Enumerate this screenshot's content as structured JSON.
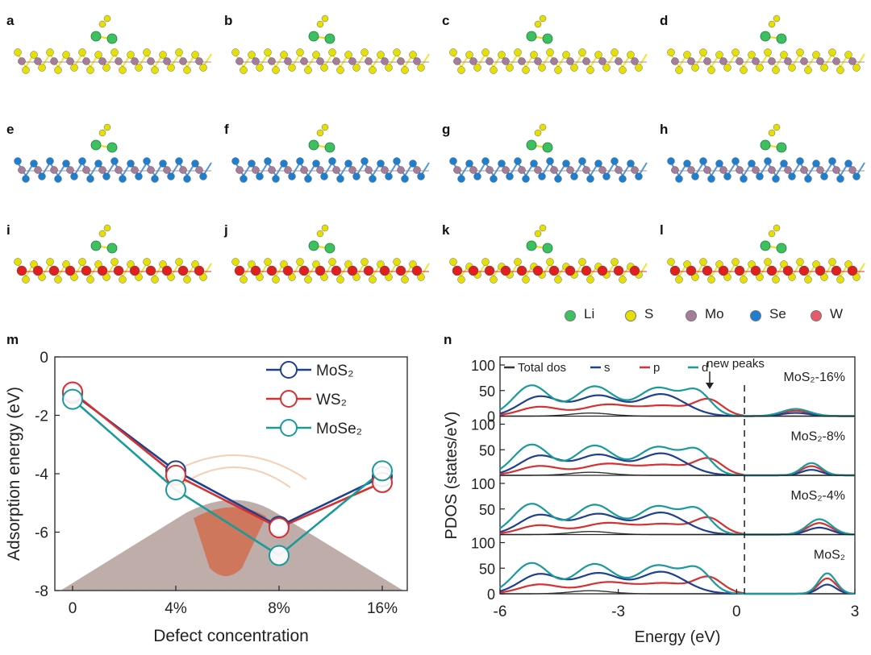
{
  "panels_structures": [
    {
      "label": "a",
      "row": 0,
      "col": 0
    },
    {
      "label": "b",
      "row": 0,
      "col": 1
    },
    {
      "label": "c",
      "row": 0,
      "col": 2
    },
    {
      "label": "d",
      "row": 0,
      "col": 3
    },
    {
      "label": "e",
      "row": 1,
      "col": 0
    },
    {
      "label": "f",
      "row": 1,
      "col": 1
    },
    {
      "label": "g",
      "row": 1,
      "col": 2
    },
    {
      "label": "h",
      "row": 1,
      "col": 3
    },
    {
      "label": "i",
      "row": 2,
      "col": 0
    },
    {
      "label": "j",
      "row": 2,
      "col": 1
    },
    {
      "label": "k",
      "row": 2,
      "col": 2
    },
    {
      "label": "l",
      "row": 2,
      "col": 3
    }
  ],
  "row_materials": [
    {
      "metal": "#a67c9a",
      "chalcogen": "#e6e000"
    },
    {
      "metal": "#a67c9a",
      "chalcogen": "#1e7fd0"
    },
    {
      "metal": "#e02020",
      "chalcogen": "#e6e000"
    }
  ],
  "atom_legend": [
    {
      "name": "Li",
      "color": "#3cc060"
    },
    {
      "name": "S",
      "color": "#e6e000"
    },
    {
      "name": "Mo",
      "color": "#a67c9a"
    },
    {
      "name": "Se",
      "color": "#1e7fd0"
    },
    {
      "name": "W",
      "color": "#e85a6a"
    }
  ],
  "panel_m_label": "m",
  "panel_n_label": "n",
  "chart_data": [
    {
      "type": "line",
      "id": "m",
      "xlabel": "Defect concentration",
      "ylabel": "Adsorption energy (eV)",
      "categories": [
        "0",
        "4%",
        "8%",
        "16%"
      ],
      "ylim": [
        -8,
        0
      ],
      "yticks": [
        "0",
        "-2",
        "-4",
        "-6",
        "-8"
      ],
      "yticks_values": [
        0,
        -2,
        -4,
        -6,
        -8
      ],
      "series": [
        {
          "name": "MoS₂",
          "color": "#1f3f8f",
          "values": [
            -1.25,
            -3.9,
            -5.8,
            -4.1
          ]
        },
        {
          "name": "WS₂",
          "color": "#d63030",
          "values": [
            -1.2,
            -4.05,
            -5.85,
            -4.3
          ]
        },
        {
          "name": "MoSe₂",
          "color": "#1a9a9a",
          "values": [
            -1.45,
            -4.55,
            -6.8,
            -3.9
          ]
        }
      ]
    },
    {
      "type": "line",
      "id": "n",
      "xlabel": "Energy (eV)",
      "ylabel": "PDOS (states/eV)",
      "xlim": [
        -6,
        3
      ],
      "xticks": [
        "-6",
        "-3",
        "0",
        "3"
      ],
      "xticks_values": [
        -6,
        -3,
        0,
        3
      ],
      "fermi_level": 0.2,
      "annotation": "new peaks",
      "legend": [
        {
          "name": "Total dos",
          "color": "#333333"
        },
        {
          "name": "s",
          "color": "#1f3f8f"
        },
        {
          "name": "p",
          "color": "#d63030"
        },
        {
          "name": "d",
          "color": "#1a9a9a"
        }
      ],
      "subpanels": [
        {
          "label": "MoS₂-16%",
          "yticks": [
            "100",
            "50",
            "0"
          ]
        },
        {
          "label": "MoS₂-8%",
          "yticks": [
            "100",
            "50"
          ]
        },
        {
          "label": "MoS₂-4%",
          "yticks": [
            "100",
            "50"
          ]
        },
        {
          "label": "MoS₂",
          "yticks": [
            "100",
            "50",
            "0"
          ]
        }
      ]
    }
  ]
}
